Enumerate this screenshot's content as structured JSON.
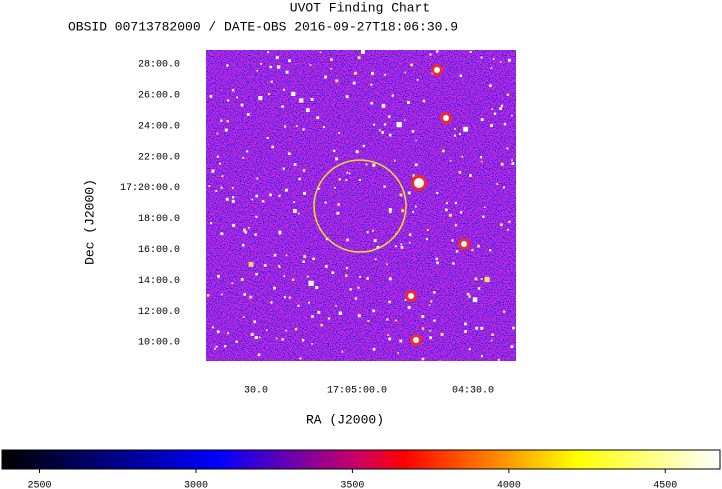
{
  "chart_data": {
    "type": "image",
    "title": "UVOT Finding Chart",
    "subtitle": "OBSID 00713782000 / DATE-OBS 2016-09-27T18:06:30.9",
    "xlabel": "RA (J2000)",
    "ylabel": "Dec (J2000)",
    "x_tick_labels": [
      "30.0",
      "17:05:00.0",
      "04:30.0"
    ],
    "y_tick_labels": [
      "28:00.0",
      "26:00.0",
      "24:00.0",
      "22:00.0",
      "17:20:00.0",
      "18:00.0",
      "16:00.0",
      "14:00.0",
      "12:00.0",
      "10:00.0"
    ],
    "colorbar": {
      "lim": [
        2380,
        4675
      ],
      "ticks": [
        2500,
        3000,
        3500,
        4000,
        4500
      ]
    }
  }
}
